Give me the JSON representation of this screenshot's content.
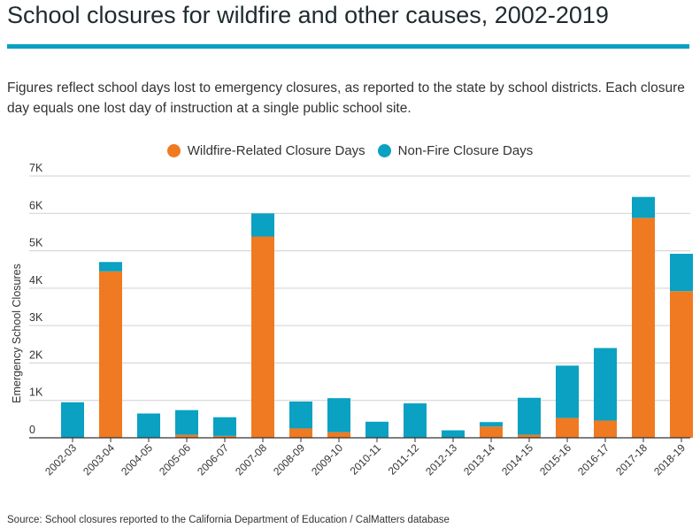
{
  "header": {
    "title": "School closures for wildfire and other causes, 2002-2019",
    "subtitle": "Figures reflect school days lost to emergency closures, as reported to the state by school districts. Each closure day equals one lost day of instruction at a single public school site."
  },
  "footer": {
    "source": "Source: School closures reported to the California Department of Education / CalMatters database"
  },
  "colors": {
    "accent_rule": "#0aa1c2",
    "wildfire": "#f07a22",
    "nonfire": "#0aa1c2"
  },
  "chart_data": {
    "type": "bar",
    "stacked": true,
    "title": "",
    "xlabel": "",
    "ylabel": "Emergency School Closures",
    "ylim": [
      0,
      7000
    ],
    "yticks": [
      0,
      1000,
      2000,
      3000,
      4000,
      5000,
      6000,
      7000
    ],
    "ytick_labels": [
      "0",
      "1K",
      "2K",
      "3K",
      "4K",
      "5K",
      "6K",
      "7K"
    ],
    "grid": true,
    "legend_position": "top-center",
    "categories": [
      "2002-03",
      "2003-04",
      "2004-05",
      "2005-06",
      "2006-07",
      "2007-08",
      "2008-09",
      "2009-10",
      "2010-11",
      "2011-12",
      "2012-13",
      "2013-14",
      "2014-15",
      "2015-16",
      "2016-17",
      "2017-18",
      "2018-19"
    ],
    "series": [
      {
        "name": "Wildfire-Related Closure Days",
        "color": "#f07a22",
        "values": [
          0,
          4450,
          0,
          80,
          50,
          5380,
          250,
          150,
          0,
          0,
          0,
          300,
          80,
          530,
          460,
          5880,
          3920
        ]
      },
      {
        "name": "Non-Fire Closure Days",
        "color": "#0aa1c2",
        "values": [
          950,
          250,
          650,
          660,
          500,
          620,
          720,
          910,
          430,
          920,
          200,
          120,
          990,
          1400,
          1940,
          560,
          1000
        ]
      }
    ]
  }
}
